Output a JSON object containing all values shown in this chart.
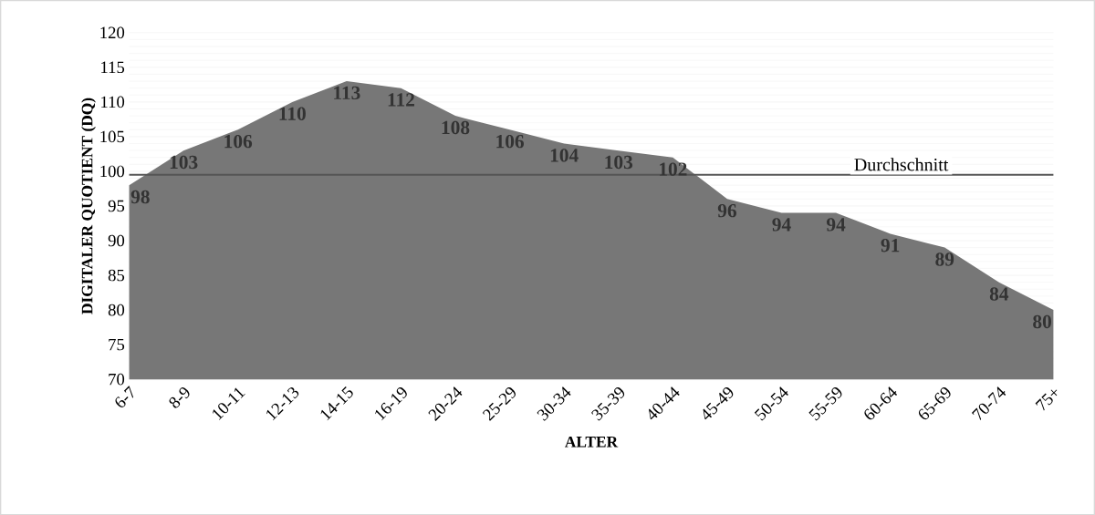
{
  "chart_data": {
    "type": "area",
    "xlabel": "ALTER",
    "ylabel": "DIGITALER QUOTIENT (DQ)",
    "categories": [
      "6-7",
      "8-9",
      "10-11",
      "12-13",
      "14-15",
      "16-19",
      "20-24",
      "25-29",
      "30-34",
      "35-39",
      "40-44",
      "45-49",
      "50-54",
      "55-59",
      "60-64",
      "65-69",
      "70-74",
      "75+"
    ],
    "values": [
      98,
      103,
      106,
      110,
      113,
      112,
      108,
      106,
      104,
      103,
      102,
      96,
      94,
      94,
      91,
      89,
      84,
      80
    ],
    "color": "#777777",
    "ylim": [
      70,
      120
    ],
    "yticks": [
      70,
      75,
      80,
      85,
      90,
      95,
      100,
      105,
      110,
      115,
      120
    ],
    "grid": "y",
    "data_labels": true,
    "ref_lines": [
      {
        "axis": "y",
        "value": 99.5,
        "label": "Durchschnitt",
        "color": "#555555"
      }
    ]
  }
}
